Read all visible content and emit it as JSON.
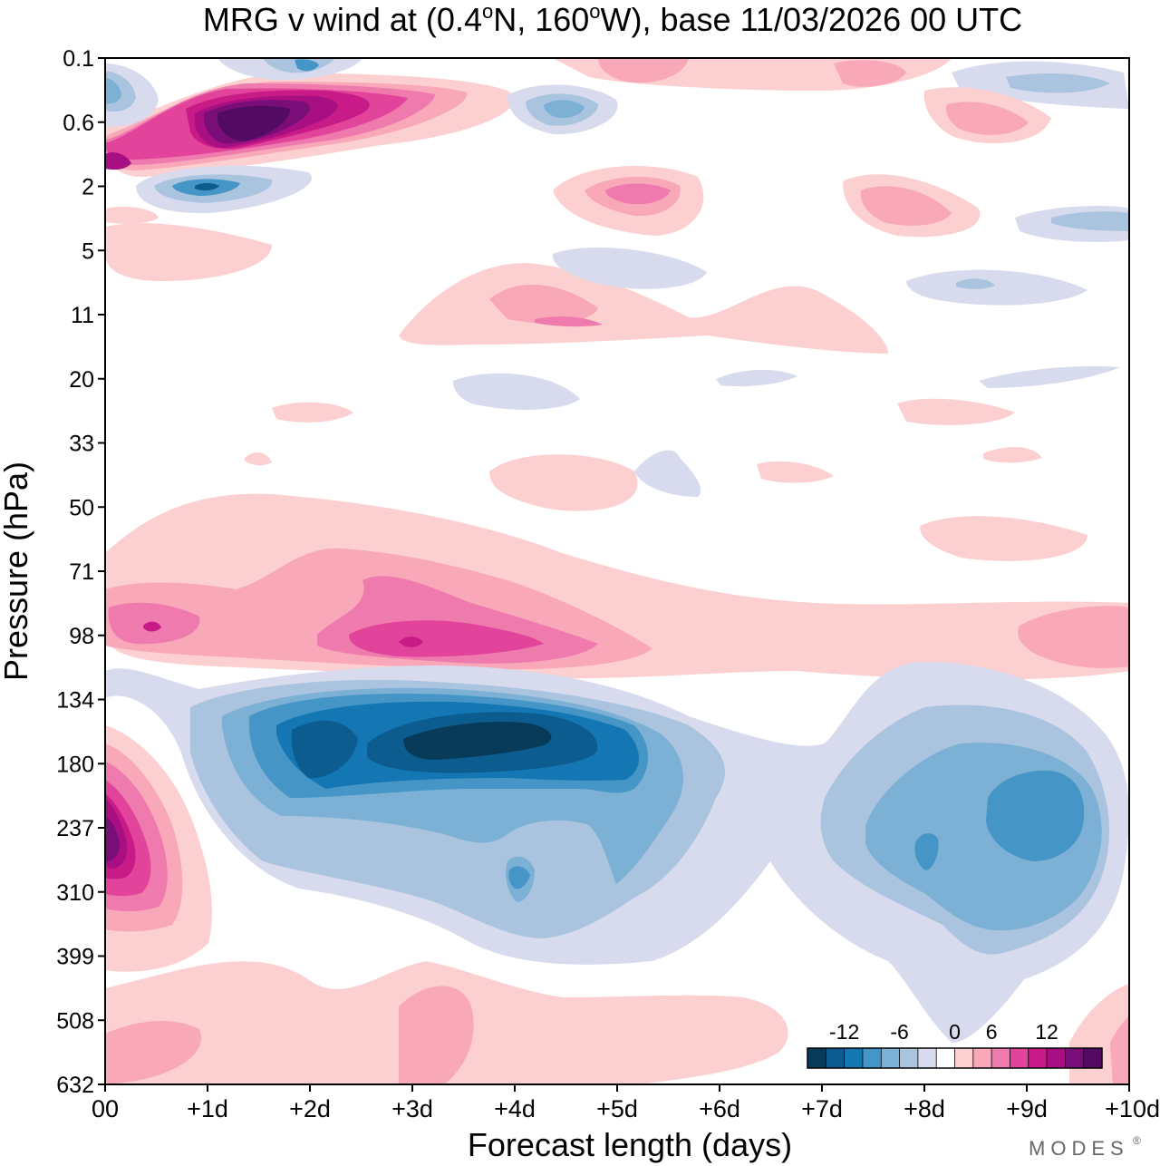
{
  "chart_data": {
    "type": "heatmap",
    "title_main": "MRG v wind at (0.4",
    "title_lat_unit": "o",
    "title_mid": "N, 160",
    "title_lon_unit": "o",
    "title_end": "W),  base 11/03/2026  00 UTC",
    "xlabel": "Forecast length (days)",
    "ylabel": "Pressure (hPa)",
    "x_ticks": [
      "00",
      "+1d",
      "+2d",
      "+3d",
      "+4d",
      "+5d",
      "+6d",
      "+7d",
      "+8d",
      "+9d",
      "+10d"
    ],
    "y_ticks": [
      "0.1",
      "0.6",
      "2",
      "5",
      "11",
      "20",
      "33",
      "50",
      "71",
      "98",
      "134",
      "180",
      "237",
      "310",
      "399",
      "508",
      "632"
    ],
    "xlim_days": [
      0,
      10
    ],
    "colorbar": {
      "labels": [
        "-12",
        "-6",
        "0",
        "6",
        "12"
      ],
      "levels": [
        -16,
        -14,
        -12,
        -10,
        -8,
        -6,
        -4,
        -2,
        2,
        4,
        6,
        8,
        10,
        12,
        14,
        16
      ],
      "colors": [
        "#083b5a",
        "#0d5c8f",
        "#1476b3",
        "#4596c6",
        "#7cb0d5",
        "#aac4e0",
        "#d8dbed",
        "#ffffff",
        "#fcd0d0",
        "#f8a8b8",
        "#ef7aae",
        "#e2449b",
        "#c81b87",
        "#a80f82",
        "#7a0e78",
        "#530a62"
      ]
    },
    "regions": [
      {
        "name": "neg-200hPa-days1-6",
        "min_value": -16,
        "center_day": 3.7,
        "center_hpa": 190
      },
      {
        "name": "neg-260hPa-days7-10",
        "min_value": -10,
        "center_day": 9.6,
        "center_hpa": 250
      },
      {
        "name": "pos-270hPa-day0",
        "max_value": 14,
        "center_day": 0.1,
        "center_hpa": 240
      },
      {
        "name": "pos-98hPa-days0-6",
        "max_value": 12,
        "center_day": 3.0,
        "center_hpa": 100
      },
      {
        "name": "pos-0.6hPa-days0-3",
        "max_value": 18,
        "center_day": 1.5,
        "center_hpa": 0.6
      },
      {
        "name": "neg-2hPa-day1",
        "min_value": -12,
        "center_day": 1.0,
        "center_hpa": 2
      }
    ]
  },
  "branding": {
    "logo_text": "MODES",
    "logo_mark": "®"
  }
}
